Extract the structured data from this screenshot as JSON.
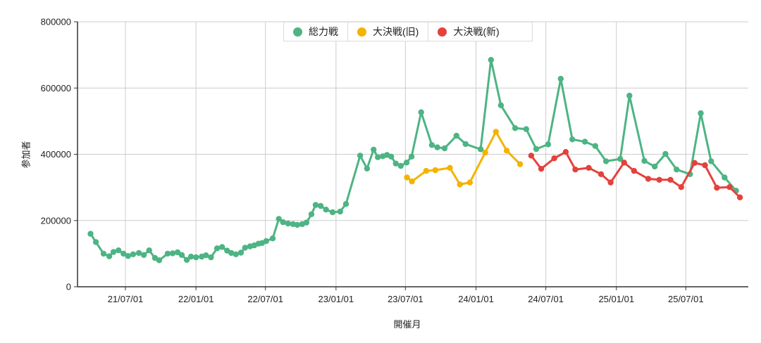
{
  "chart_data": {
    "type": "line",
    "title": "",
    "xlabel": "開催月",
    "ylabel": "参加者",
    "ylim": [
      0,
      800000
    ],
    "y_ticks": [
      0,
      200000,
      400000,
      600000,
      800000
    ],
    "x_ticks": [
      {
        "date": "2021-07-01",
        "label": "21/07/01"
      },
      {
        "date": "2022-01-01",
        "label": "22/01/01"
      },
      {
        "date": "2022-07-01",
        "label": "22/07/01"
      },
      {
        "date": "2023-01-01",
        "label": "23/01/01"
      },
      {
        "date": "2023-07-01",
        "label": "23/07/01"
      },
      {
        "date": "2024-01-01",
        "label": "24/01/01"
      },
      {
        "date": "2024-07-01",
        "label": "24/07/01"
      },
      {
        "date": "2025-01-01",
        "label": "25/01/01"
      },
      {
        "date": "2025-07-01",
        "label": "25/07/01"
      }
    ],
    "grid": true,
    "grid_color": "#cccccc",
    "axis_color": "#333333",
    "text_color": "#222222",
    "legend_position": "top-center",
    "legend": [
      "総力戦",
      "大決戦(旧)",
      "大決戦(新)"
    ],
    "series": [
      {
        "name": "総力戦",
        "color": "#4db483",
        "points": [
          [
            "2021-04-01",
            160000
          ],
          [
            "2021-04-15",
            135000
          ],
          [
            "2021-05-05",
            100000
          ],
          [
            "2021-05-20",
            92000
          ],
          [
            "2021-05-31",
            105000
          ],
          [
            "2021-06-13",
            110000
          ],
          [
            "2021-06-26",
            100000
          ],
          [
            "2021-07-08",
            93000
          ],
          [
            "2021-07-21",
            98000
          ],
          [
            "2021-08-05",
            102000
          ],
          [
            "2021-08-18",
            96000
          ],
          [
            "2021-09-01",
            110000
          ],
          [
            "2021-09-16",
            87000
          ],
          [
            "2021-09-27",
            80000
          ],
          [
            "2021-10-19",
            100000
          ],
          [
            "2021-11-01",
            101000
          ],
          [
            "2021-11-14",
            104000
          ],
          [
            "2021-11-25",
            96000
          ],
          [
            "2021-12-08",
            81000
          ],
          [
            "2021-12-19",
            91000
          ],
          [
            "2022-01-01",
            89000
          ],
          [
            "2022-01-16",
            91000
          ],
          [
            "2022-01-27",
            95000
          ],
          [
            "2022-02-09",
            89000
          ],
          [
            "2022-02-25",
            116000
          ],
          [
            "2022-03-10",
            120000
          ],
          [
            "2022-03-23",
            109000
          ],
          [
            "2022-04-03",
            102000
          ],
          [
            "2022-04-15",
            98000
          ],
          [
            "2022-04-28",
            103000
          ],
          [
            "2022-05-09",
            118000
          ],
          [
            "2022-05-22",
            122000
          ],
          [
            "2022-06-02",
            125000
          ],
          [
            "2022-06-13",
            130000
          ],
          [
            "2022-06-22",
            132000
          ],
          [
            "2022-07-03",
            138000
          ],
          [
            "2022-07-20",
            146000
          ],
          [
            "2022-08-05",
            205000
          ],
          [
            "2022-08-16",
            195000
          ],
          [
            "2022-08-29",
            191000
          ],
          [
            "2022-09-11",
            189000
          ],
          [
            "2022-09-22",
            187000
          ],
          [
            "2022-10-05",
            189000
          ],
          [
            "2022-10-16",
            194000
          ],
          [
            "2022-10-29",
            219000
          ],
          [
            "2022-11-09",
            247000
          ],
          [
            "2022-11-22",
            244000
          ],
          [
            "2022-12-06",
            233000
          ],
          [
            "2022-12-23",
            225000
          ],
          [
            "2023-01-12",
            227000
          ],
          [
            "2023-01-27",
            250000
          ],
          [
            "2023-03-05",
            396000
          ],
          [
            "2023-03-23",
            357000
          ],
          [
            "2023-04-09",
            414000
          ],
          [
            "2023-04-20",
            391000
          ],
          [
            "2023-05-03",
            394000
          ],
          [
            "2023-05-14",
            398000
          ],
          [
            "2023-05-25",
            393000
          ],
          [
            "2023-06-06",
            372000
          ],
          [
            "2023-06-19",
            365000
          ],
          [
            "2023-07-04",
            375000
          ],
          [
            "2023-07-17",
            393000
          ],
          [
            "2023-08-11",
            527000
          ],
          [
            "2023-09-08",
            428000
          ],
          [
            "2023-09-22",
            421000
          ],
          [
            "2023-10-11",
            418000
          ],
          [
            "2023-11-11",
            456000
          ],
          [
            "2023-12-05",
            431000
          ],
          [
            "2024-01-13",
            415000
          ],
          [
            "2024-02-09",
            685000
          ],
          [
            "2024-03-06",
            548000
          ],
          [
            "2024-04-12",
            479000
          ],
          [
            "2024-05-11",
            476000
          ],
          [
            "2024-06-06",
            416000
          ],
          [
            "2024-07-07",
            430000
          ],
          [
            "2024-08-09",
            628000
          ],
          [
            "2024-09-08",
            445000
          ],
          [
            "2024-10-11",
            438000
          ],
          [
            "2024-11-07",
            425000
          ],
          [
            "2024-12-05",
            379000
          ],
          [
            "2025-01-11",
            386000
          ],
          [
            "2025-02-04",
            577000
          ],
          [
            "2025-03-15",
            380000
          ],
          [
            "2025-04-11",
            363000
          ],
          [
            "2025-05-09",
            401000
          ],
          [
            "2025-06-07",
            354000
          ],
          [
            "2025-07-12",
            340000
          ],
          [
            "2025-08-09",
            524000
          ],
          [
            "2025-09-05",
            379000
          ],
          [
            "2025-10-10",
            330000
          ],
          [
            "2025-11-09",
            290000
          ]
        ]
      },
      {
        "name": "大決戦(旧)",
        "color": "#f4b301",
        "points": [
          [
            "2023-07-05",
            330000
          ],
          [
            "2023-07-18",
            318000
          ],
          [
            "2023-08-24",
            350000
          ],
          [
            "2023-09-17",
            352000
          ],
          [
            "2023-10-25",
            359000
          ],
          [
            "2023-11-20",
            309000
          ],
          [
            "2023-12-16",
            315000
          ],
          [
            "2024-01-25",
            405000
          ],
          [
            "2024-02-22",
            468000
          ],
          [
            "2024-03-21",
            411000
          ],
          [
            "2024-04-25",
            370000
          ]
        ]
      },
      {
        "name": "大決戦(新)",
        "color": "#e5413c",
        "points": [
          [
            "2024-05-24",
            396000
          ],
          [
            "2024-06-19",
            356000
          ],
          [
            "2024-07-23",
            388000
          ],
          [
            "2024-08-22",
            407000
          ],
          [
            "2024-09-16",
            354000
          ],
          [
            "2024-10-21",
            359000
          ],
          [
            "2024-11-22",
            340000
          ],
          [
            "2024-12-17",
            315000
          ],
          [
            "2025-01-21",
            375000
          ],
          [
            "2025-02-16",
            350000
          ],
          [
            "2025-03-25",
            326000
          ],
          [
            "2025-04-23",
            323000
          ],
          [
            "2025-05-22",
            323000
          ],
          [
            "2025-06-19",
            301000
          ],
          [
            "2025-07-24",
            374000
          ],
          [
            "2025-08-20",
            367000
          ],
          [
            "2025-09-20",
            299000
          ],
          [
            "2025-10-23",
            301000
          ],
          [
            "2025-11-19",
            270000
          ]
        ]
      }
    ]
  }
}
